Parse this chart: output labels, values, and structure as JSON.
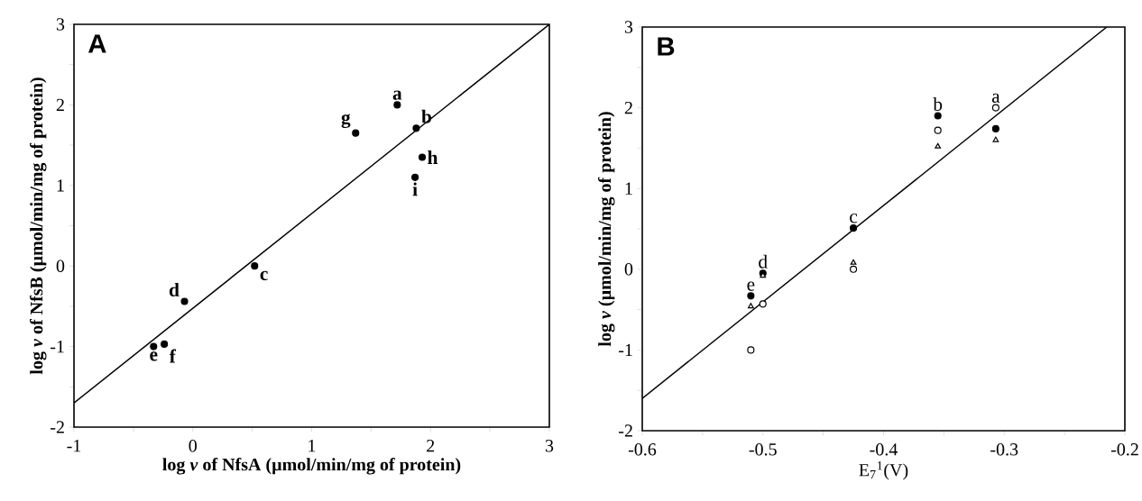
{
  "chart_data": [
    {
      "type": "scatter",
      "xlabel": "log *v* of NfsA (µmol/min/mg of protein)",
      "ylabel": "log *v* of NfsB (µmol/min/mg of protein)",
      "xlim": [
        -1,
        3
      ],
      "ylim": [
        -2,
        3
      ],
      "xticks": [
        -1,
        {
          "value": -0.5,
          "label": null
        },
        0,
        {
          "value": 0.5,
          "label": null
        },
        1,
        {
          "value": 1.5,
          "label": null
        },
        2,
        {
          "value": 2.5,
          "label": null
        },
        3
      ],
      "yticks": [
        -2,
        {
          "value": -1.5,
          "label": null
        },
        -1,
        {
          "value": -0.5,
          "label": null
        },
        0,
        {
          "value": 0.5,
          "label": null
        },
        1,
        {
          "value": 1.5,
          "label": null
        },
        2,
        {
          "value": 2.5,
          "label": null
        },
        3
      ],
      "series": [
        {
          "color": "#000000",
          "marker": "circle",
          "x": [
            1.72,
            1.88,
            0.52,
            -0.07,
            -0.33,
            -0.24,
            1.37,
            1.93,
            1.87
          ],
          "values": [
            2.0,
            1.71,
            0.0,
            -0.44,
            -1.0,
            -0.97,
            1.65,
            1.35,
            1.1
          ]
        },
        {
          "type": "line",
          "marker": "none",
          "color": "#000000",
          "x": [
            -1,
            3
          ],
          "values": [
            -1.7,
            3.0
          ]
        }
      ],
      "annotations": [
        "A",
        {
          "text": "a",
          "x": 1.72,
          "y": 2.0
        },
        {
          "text": "b",
          "x": 1.88,
          "y": 1.71
        },
        {
          "text": "c",
          "x": 0.52,
          "y": 0.0
        },
        {
          "text": "d",
          "x": -0.07,
          "y": -0.44
        },
        {
          "text": "e",
          "x": -0.33,
          "y": -1.0
        },
        {
          "text": "f",
          "x": -0.24,
          "y": -0.97
        },
        {
          "text": "g",
          "x": 1.37,
          "y": 1.65
        },
        {
          "text": "h",
          "x": 1.93,
          "y": 1.35
        },
        {
          "text": "i",
          "x": 1.87,
          "y": 1.1
        }
      ]
    },
    {
      "type": "scatter",
      "xlabel": "E$_{7}$$^{1}$(V)",
      "ylabel": "log *v* (µmol/min/mg of protein)",
      "xlim": [
        -0.6,
        -0.2
      ],
      "ylim": [
        -2,
        3
      ],
      "xticks": [
        -0.6,
        {
          "value": -0.55,
          "label": null
        },
        -0.5,
        {
          "value": -0.45,
          "label": null
        },
        -0.4,
        {
          "value": -0.35,
          "label": null
        },
        -0.3,
        {
          "value": -0.25,
          "label": null
        },
        -0.2
      ],
      "yticks": [
        -2,
        {
          "value": -1.5,
          "label": null
        },
        -1,
        {
          "value": -0.5,
          "label": null
        },
        0,
        {
          "value": 0.5,
          "label": null
        },
        1,
        {
          "value": 1.5,
          "label": null
        },
        2,
        {
          "value": 2.5,
          "label": null
        },
        3
      ],
      "series": [
        {
          "color": "#000000",
          "marker": "circle",
          "x": [
            -0.307,
            -0.355,
            -0.425,
            -0.5,
            -0.51
          ],
          "values": [
            1.74,
            1.9,
            0.51,
            -0.05,
            -0.33
          ]
        },
        {
          "color": "#ffffff",
          "marker": "circle",
          "x": [
            -0.307,
            -0.355,
            -0.425,
            -0.5,
            -0.51
          ],
          "values": [
            2.0,
            1.72,
            0.0,
            -0.43,
            -1.0
          ]
        },
        {
          "color": "#ffffff",
          "marker": "triangle",
          "x": [
            -0.307,
            -0.355,
            -0.425,
            -0.5,
            -0.51
          ],
          "values": [
            1.6,
            1.52,
            0.08,
            -0.08,
            -0.46
          ]
        },
        {
          "type": "line",
          "marker": "none",
          "color": "#000000",
          "x": [
            -0.6,
            -0.215
          ],
          "values": [
            -1.6,
            3.0
          ]
        }
      ],
      "annotations": [
        "B",
        {
          "text": "a",
          "x": -0.307,
          "y": 2.0
        },
        {
          "text": "b",
          "x": -0.355,
          "y": 1.9
        },
        {
          "text": "c",
          "x": -0.425,
          "y": 0.51
        },
        {
          "text": "d",
          "x": -0.5,
          "y": -0.05
        },
        {
          "text": "e",
          "x": -0.51,
          "y": -0.33
        }
      ]
    }
  ]
}
